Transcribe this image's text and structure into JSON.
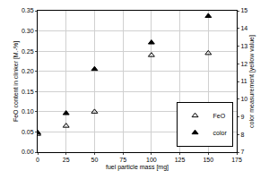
{
  "chart_data": {
    "type": "scatter",
    "x_label": "fuel particle mass [mg]",
    "y_label": "FeO content in clinker [M.-%]",
    "y2_label": "color measurement [yellow value]",
    "xlim": [
      0,
      175
    ],
    "xticks": [
      0,
      25,
      50,
      75,
      100,
      125,
      150,
      175
    ],
    "ylim": [
      0,
      0.35
    ],
    "yticks": [
      {
        "value": 0,
        "label": "0.00"
      },
      0.05,
      {
        "value": 0.1,
        "label": "0.10"
      },
      0.15,
      {
        "value": 0.2,
        "label": "0.20"
      },
      0.25,
      {
        "value": 0.3,
        "label": "0.30"
      },
      0.35
    ],
    "y2lim": [
      7,
      15
    ],
    "y2ticks": [
      7,
      8,
      9,
      10,
      11,
      12,
      13,
      14,
      15
    ],
    "grid": true,
    "legend": "lower right",
    "series": [
      {
        "name": "FeO",
        "color": "#000000",
        "marker": "triangle-up-open",
        "x": [
          0,
          25,
          50,
          100,
          150
        ],
        "values": [
          0.045,
          0.065,
          0.1,
          0.24,
          0.245
        ]
      },
      {
        "name": "color",
        "color": "#000000",
        "marker": "triangle-up",
        "axis": "y2",
        "x": [
          0,
          25,
          50,
          100,
          150
        ],
        "values": [
          8.1,
          9.2,
          11.7,
          13.2,
          14.7
        ]
      }
    ]
  }
}
